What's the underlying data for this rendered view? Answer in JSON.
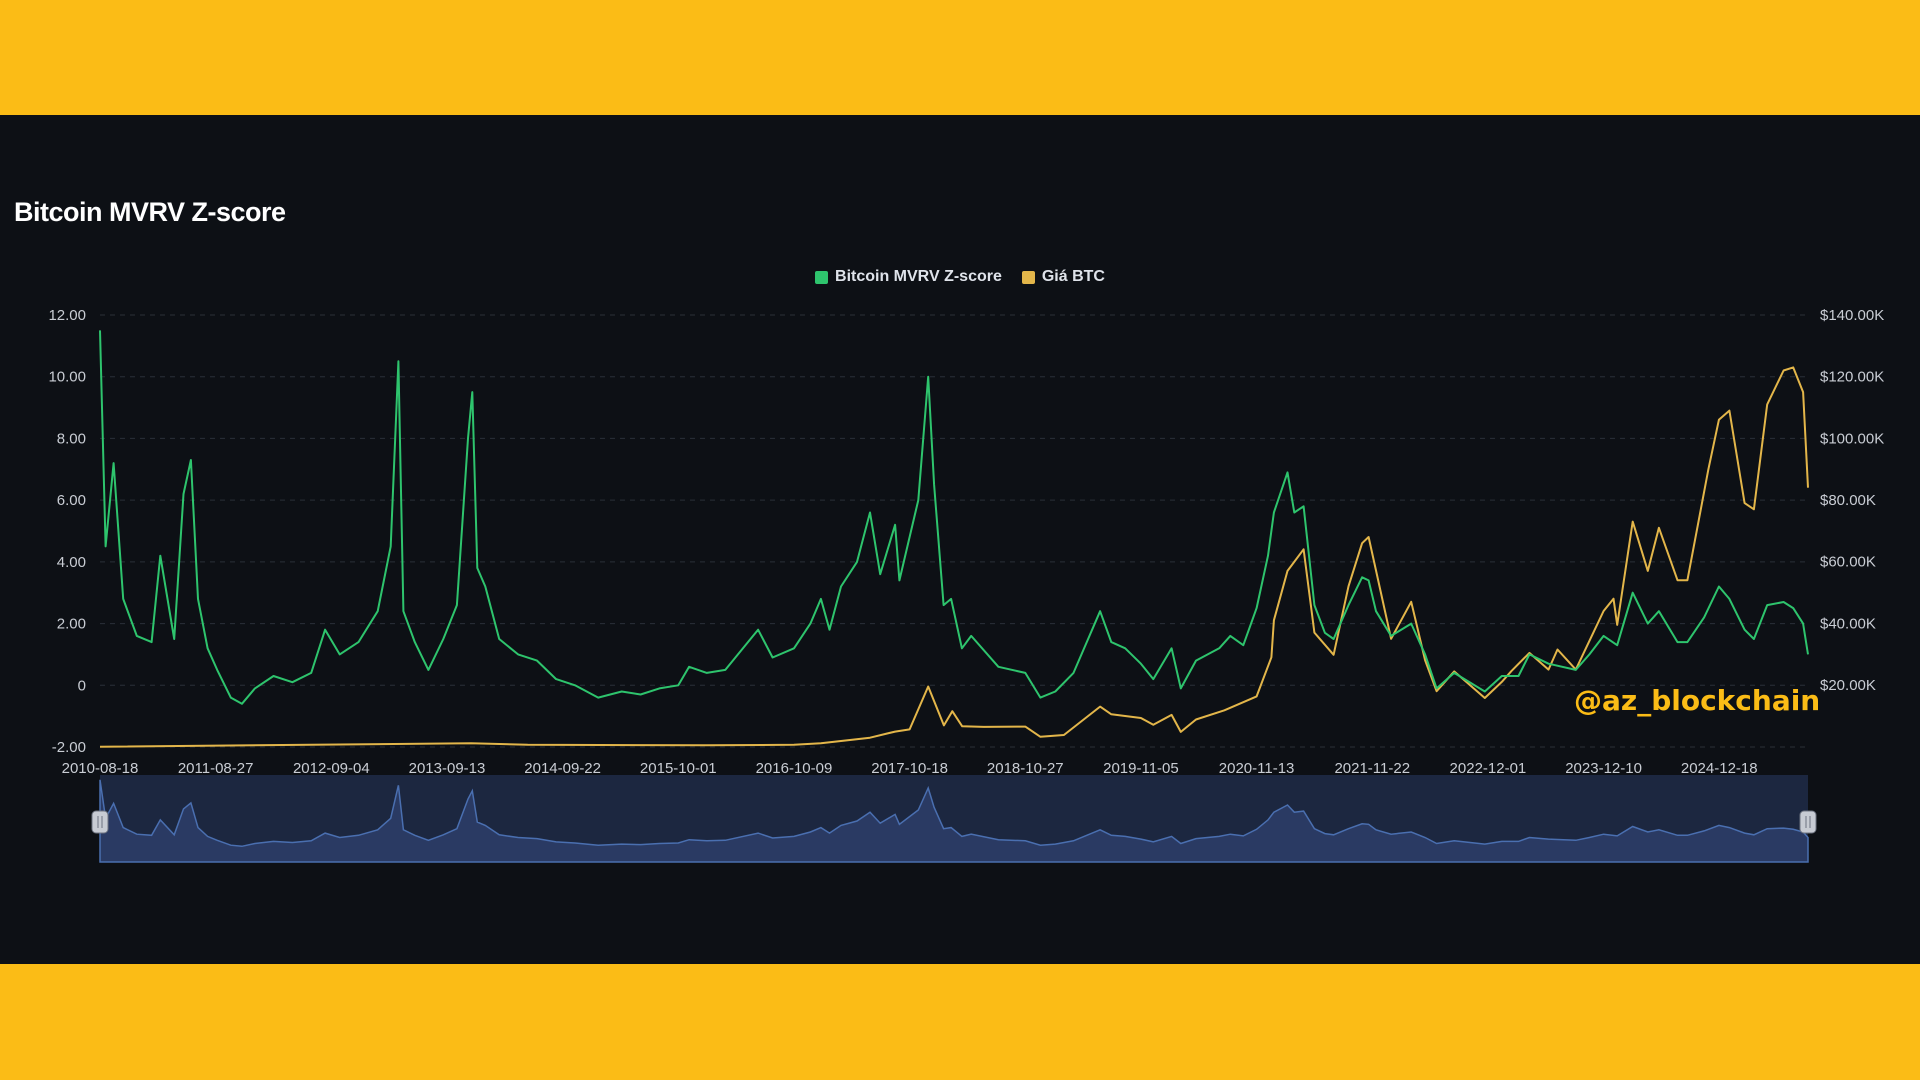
{
  "chart_data": {
    "type": "line",
    "title": "Bitcoin MVRV Z-score",
    "x_tick_labels": [
      "2010-08-18",
      "2011-08-27",
      "2012-09-04",
      "2013-09-13",
      "2014-09-22",
      "2015-10-01",
      "2016-10-09",
      "2017-10-18",
      "2018-10-27",
      "2019-11-05",
      "2020-11-13",
      "2021-11-22",
      "2022-12-01",
      "2023-12-10",
      "2024-12-18"
    ],
    "y_left_tick_labels": [
      "12.00",
      "10.00",
      "8.00",
      "6.00",
      "4.00",
      "2.00",
      "0",
      "-2.00"
    ],
    "y_right_tick_labels": [
      "$140.00K",
      "$120.00K",
      "$100.00K",
      "$80.00K",
      "$60.00K",
      "$40.00K",
      "$20.00K"
    ],
    "y_left_lim": [
      -2,
      12
    ],
    "y_right_lim": [
      0,
      140000
    ],
    "legend_position": "top-center",
    "grid": true,
    "x_range": [
      "2010-08-18",
      "2025-10-01"
    ],
    "series": [
      {
        "name": "Bitcoin MVRV Z-score",
        "axis": "left",
        "color": "#2ec46d",
        "points": [
          [
            "2010-08-18",
            11.5
          ],
          [
            "2010-09-05",
            4.5
          ],
          [
            "2010-10-01",
            7.2
          ],
          [
            "2010-11-01",
            2.8
          ],
          [
            "2010-12-15",
            1.6
          ],
          [
            "2011-02-01",
            1.4
          ],
          [
            "2011-03-01",
            4.2
          ],
          [
            "2011-04-15",
            1.5
          ],
          [
            "2011-05-15",
            6.2
          ],
          [
            "2011-06-08",
            7.3
          ],
          [
            "2011-07-01",
            2.8
          ],
          [
            "2011-08-01",
            1.2
          ],
          [
            "2011-09-01",
            0.5
          ],
          [
            "2011-10-15",
            -0.4
          ],
          [
            "2011-11-20",
            -0.6
          ],
          [
            "2012-01-01",
            -0.1
          ],
          [
            "2012-03-01",
            0.3
          ],
          [
            "2012-05-01",
            0.1
          ],
          [
            "2012-07-01",
            0.4
          ],
          [
            "2012-08-15",
            1.8
          ],
          [
            "2012-10-01",
            1.0
          ],
          [
            "2012-12-01",
            1.4
          ],
          [
            "2013-02-01",
            2.4
          ],
          [
            "2013-03-15",
            4.5
          ],
          [
            "2013-04-09",
            10.5
          ],
          [
            "2013-04-25",
            2.4
          ],
          [
            "2013-06-01",
            1.4
          ],
          [
            "2013-07-15",
            0.5
          ],
          [
            "2013-09-01",
            1.5
          ],
          [
            "2013-10-15",
            2.6
          ],
          [
            "2013-11-20",
            8.0
          ],
          [
            "2013-12-04",
            9.5
          ],
          [
            "2013-12-20",
            3.8
          ],
          [
            "2014-01-15",
            3.2
          ],
          [
            "2014-03-01",
            1.5
          ],
          [
            "2014-05-01",
            1.0
          ],
          [
            "2014-07-01",
            0.8
          ],
          [
            "2014-09-01",
            0.2
          ],
          [
            "2014-11-01",
            0.0
          ],
          [
            "2015-01-15",
            -0.4
          ],
          [
            "2015-04-01",
            -0.2
          ],
          [
            "2015-06-01",
            -0.3
          ],
          [
            "2015-08-01",
            -0.1
          ],
          [
            "2015-10-01",
            0.0
          ],
          [
            "2015-11-05",
            0.6
          ],
          [
            "2016-01-01",
            0.4
          ],
          [
            "2016-03-01",
            0.5
          ],
          [
            "2016-06-15",
            1.8
          ],
          [
            "2016-08-01",
            0.9
          ],
          [
            "2016-10-09",
            1.2
          ],
          [
            "2016-12-01",
            2.0
          ],
          [
            "2017-01-04",
            2.8
          ],
          [
            "2017-02-01",
            1.8
          ],
          [
            "2017-03-10",
            3.2
          ],
          [
            "2017-05-01",
            4.0
          ],
          [
            "2017-06-12",
            5.6
          ],
          [
            "2017-07-15",
            3.6
          ],
          [
            "2017-09-01",
            5.2
          ],
          [
            "2017-09-15",
            3.4
          ],
          [
            "2017-11-15",
            6.0
          ],
          [
            "2017-12-17",
            10.0
          ],
          [
            "2018-01-05",
            6.5
          ],
          [
            "2018-02-05",
            2.6
          ],
          [
            "2018-03-01",
            2.8
          ],
          [
            "2018-04-05",
            1.2
          ],
          [
            "2018-05-05",
            1.6
          ],
          [
            "2018-08-01",
            0.6
          ],
          [
            "2018-10-27",
            0.4
          ],
          [
            "2018-12-15",
            -0.4
          ],
          [
            "2019-02-01",
            -0.2
          ],
          [
            "2019-04-01",
            0.4
          ],
          [
            "2019-06-26",
            2.4
          ],
          [
            "2019-08-01",
            1.4
          ],
          [
            "2019-09-15",
            1.2
          ],
          [
            "2019-11-05",
            0.7
          ],
          [
            "2019-12-15",
            0.2
          ],
          [
            "2020-02-12",
            1.2
          ],
          [
            "2020-03-13",
            -0.1
          ],
          [
            "2020-05-01",
            0.8
          ],
          [
            "2020-07-15",
            1.2
          ],
          [
            "2020-08-20",
            1.6
          ],
          [
            "2020-10-01",
            1.3
          ],
          [
            "2020-11-13",
            2.5
          ],
          [
            "2020-12-20",
            4.2
          ],
          [
            "2021-01-08",
            5.6
          ],
          [
            "2021-02-21",
            6.9
          ],
          [
            "2021-03-15",
            5.6
          ],
          [
            "2021-04-14",
            5.8
          ],
          [
            "2021-05-19",
            2.6
          ],
          [
            "2021-06-22",
            1.7
          ],
          [
            "2021-07-20",
            1.5
          ],
          [
            "2021-09-06",
            2.6
          ],
          [
            "2021-10-20",
            3.5
          ],
          [
            "2021-11-10",
            3.4
          ],
          [
            "2021-12-04",
            2.4
          ],
          [
            "2022-01-22",
            1.6
          ],
          [
            "2022-03-28",
            2.0
          ],
          [
            "2022-05-12",
            1.0
          ],
          [
            "2022-06-18",
            -0.1
          ],
          [
            "2022-08-14",
            0.4
          ],
          [
            "2022-11-21",
            -0.2
          ],
          [
            "2023-01-15",
            0.3
          ],
          [
            "2023-03-10",
            0.3
          ],
          [
            "2023-04-14",
            1.0
          ],
          [
            "2023-06-15",
            0.7
          ],
          [
            "2023-09-11",
            0.5
          ],
          [
            "2023-10-25",
            1.0
          ],
          [
            "2023-12-10",
            1.6
          ],
          [
            "2024-01-23",
            1.3
          ],
          [
            "2024-03-13",
            3.0
          ],
          [
            "2024-05-01",
            2.0
          ],
          [
            "2024-06-06",
            2.4
          ],
          [
            "2024-08-05",
            1.4
          ],
          [
            "2024-09-06",
            1.4
          ],
          [
            "2024-10-30",
            2.2
          ],
          [
            "2024-12-17",
            3.2
          ],
          [
            "2025-01-20",
            2.8
          ],
          [
            "2025-03-10",
            1.8
          ],
          [
            "2025-04-09",
            1.5
          ],
          [
            "2025-05-22",
            2.6
          ],
          [
            "2025-07-14",
            2.7
          ],
          [
            "2025-08-14",
            2.5
          ],
          [
            "2025-09-15",
            2.0
          ],
          [
            "2025-10-01",
            1.0
          ]
        ]
      },
      {
        "name": "Giá BTC",
        "axis": "right",
        "color": "#e3b64a",
        "points": [
          [
            "2010-08-18",
            0
          ],
          [
            "2013-11-30",
            1100
          ],
          [
            "2014-06-01",
            600
          ],
          [
            "2016-01-01",
            430
          ],
          [
            "2016-10-09",
            620
          ],
          [
            "2017-01-04",
            1100
          ],
          [
            "2017-06-12",
            2900
          ],
          [
            "2017-09-01",
            4900
          ],
          [
            "2017-10-18",
            5600
          ],
          [
            "2017-12-17",
            19500
          ],
          [
            "2018-02-06",
            6900
          ],
          [
            "2018-03-05",
            11500
          ],
          [
            "2018-04-06",
            6600
          ],
          [
            "2018-06-15",
            6400
          ],
          [
            "2018-10-27",
            6500
          ],
          [
            "2018-12-15",
            3200
          ],
          [
            "2019-03-01",
            3800
          ],
          [
            "2019-06-26",
            13000
          ],
          [
            "2019-08-01",
            10500
          ],
          [
            "2019-11-05",
            9300
          ],
          [
            "2019-12-15",
            7100
          ],
          [
            "2020-02-12",
            10300
          ],
          [
            "2020-03-13",
            4800
          ],
          [
            "2020-05-01",
            8800
          ],
          [
            "2020-08-01",
            11800
          ],
          [
            "2020-11-13",
            16300
          ],
          [
            "2020-12-31",
            29000
          ],
          [
            "2021-01-08",
            41000
          ],
          [
            "2021-02-21",
            57000
          ],
          [
            "2021-04-14",
            64000
          ],
          [
            "2021-05-19",
            37000
          ],
          [
            "2021-07-20",
            29800
          ],
          [
            "2021-09-06",
            52000
          ],
          [
            "2021-10-20",
            66000
          ],
          [
            "2021-11-10",
            68000
          ],
          [
            "2022-01-22",
            35000
          ],
          [
            "2022-03-28",
            47000
          ],
          [
            "2022-05-12",
            28000
          ],
          [
            "2022-06-18",
            18000
          ],
          [
            "2022-08-14",
            24400
          ],
          [
            "2022-11-21",
            15800
          ],
          [
            "2023-01-15",
            21000
          ],
          [
            "2023-02-15",
            24500
          ],
          [
            "2023-04-14",
            30400
          ],
          [
            "2023-06-15",
            25000
          ],
          [
            "2023-07-14",
            31500
          ],
          [
            "2023-09-11",
            25000
          ],
          [
            "2023-12-10",
            44000
          ],
          [
            "2024-01-11",
            48000
          ],
          [
            "2024-01-23",
            39500
          ],
          [
            "2024-03-13",
            73000
          ],
          [
            "2024-05-01",
            57000
          ],
          [
            "2024-06-06",
            71000
          ],
          [
            "2024-08-05",
            54000
          ],
          [
            "2024-09-06",
            54000
          ],
          [
            "2024-11-13",
            90000
          ],
          [
            "2024-12-17",
            106000
          ],
          [
            "2025-01-20",
            109000
          ],
          [
            "2025-03-10",
            79000
          ],
          [
            "2025-04-09",
            77000
          ],
          [
            "2025-05-22",
            111000
          ],
          [
            "2025-07-14",
            122000
          ],
          [
            "2025-08-14",
            123000
          ],
          [
            "2025-09-15",
            115000
          ],
          [
            "2025-10-01",
            84000
          ]
        ]
      }
    ]
  },
  "watermark": "@az_blockchain",
  "colors": {
    "frame": "#fbbc16",
    "background": "#0d1015",
    "zscore": "#2ec46d",
    "price": "#e3b64a",
    "navigator_fill": "#2a3a63",
    "navigator_line": "#4a6fb0"
  }
}
